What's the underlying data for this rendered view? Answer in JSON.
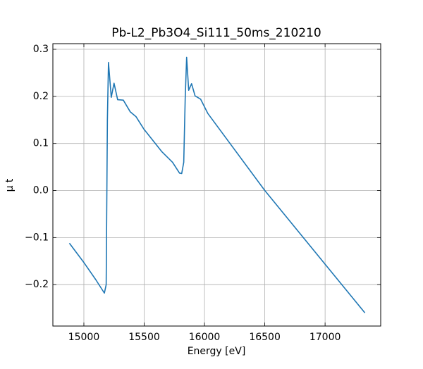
{
  "chart_data": {
    "type": "line",
    "title": "Pb-L2_Pb3O4_Si111_50ms_210210",
    "x_label": "Energy [eV]",
    "y_label": "μ t",
    "x": [
      14880,
      15000,
      15100,
      15150,
      15170,
      15185,
      15195,
      15204,
      15227,
      15250,
      15280,
      15327,
      15385,
      15432,
      15496,
      15648,
      15735,
      15793,
      15811,
      15828,
      15840,
      15852,
      15869,
      15893,
      15922,
      15968,
      16027,
      16500,
      17330
    ],
    "series": [
      {
        "name": "μ t",
        "color": "#1f77b4",
        "values": [
          -0.112,
          -0.153,
          -0.19,
          -0.21,
          -0.218,
          -0.2,
          0.15,
          0.272,
          0.198,
          0.228,
          0.193,
          0.192,
          0.167,
          0.157,
          0.131,
          0.082,
          0.06,
          0.037,
          0.036,
          0.06,
          0.194,
          0.283,
          0.213,
          0.227,
          0.201,
          0.194,
          0.164,
          0.0,
          -0.26
        ]
      }
    ],
    "xlim": [
      14743,
      17461
    ],
    "ylim": [
      -0.288,
      0.312
    ],
    "xticks": [
      15000,
      15500,
      16000,
      16500,
      17000
    ],
    "yticks": [
      {
        "value": -0.2,
        "label": "−0.2"
      },
      {
        "value": -0.1,
        "label": "−0.1"
      },
      {
        "value": 0.0,
        "label": "0.0"
      },
      0.1,
      0.2,
      0.3
    ],
    "grid": true
  }
}
